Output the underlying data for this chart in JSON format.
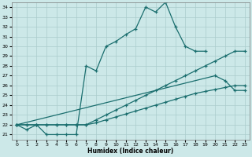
{
  "xlabel": "Humidex (Indice chaleur)",
  "background_color": "#cce8e8",
  "grid_color": "#aacccc",
  "line_color": "#1a6e6e",
  "xlim": [
    -0.5,
    23.5
  ],
  "ylim": [
    20.5,
    34.5
  ],
  "series1_x": [
    0,
    1,
    2,
    3,
    4,
    5,
    6,
    7,
    8,
    9,
    10,
    11,
    12,
    13,
    14,
    15,
    16,
    17,
    18,
    19
  ],
  "series1_y": [
    22,
    21.5,
    22,
    21,
    21,
    21,
    21,
    28,
    27.5,
    30,
    30.5,
    31.2,
    31.8,
    34,
    33.5,
    34.5,
    32,
    30,
    29.5,
    29.5
  ],
  "series2_x": [
    0,
    1,
    2,
    3,
    4,
    5,
    6,
    7,
    8,
    9,
    10,
    11,
    12,
    13,
    14,
    15,
    16,
    17,
    18,
    19,
    20,
    21,
    22,
    23
  ],
  "series2_y": [
    22,
    22,
    22,
    22,
    22,
    22,
    22,
    22,
    22.5,
    23,
    23.5,
    24,
    24.5,
    25,
    25.5,
    26,
    26.5,
    27,
    27.5,
    28,
    28.5,
    29,
    29.5,
    29.5
  ],
  "series3_x": [
    0,
    1,
    2,
    3,
    4,
    5,
    6,
    7,
    8,
    9,
    10,
    11,
    12,
    13,
    14,
    15,
    16,
    17,
    18,
    19,
    20,
    21,
    22,
    23
  ],
  "series3_y": [
    22,
    22,
    22,
    22,
    22,
    22,
    22,
    22,
    22.2,
    22.5,
    22.8,
    23.1,
    23.4,
    23.7,
    24,
    24.3,
    24.6,
    24.9,
    25.2,
    25.4,
    25.6,
    25.8,
    26,
    26
  ],
  "series4_x": [
    0,
    20,
    21,
    22,
    23
  ],
  "series4_y": [
    22,
    27,
    26.5,
    25.5,
    25.5
  ]
}
